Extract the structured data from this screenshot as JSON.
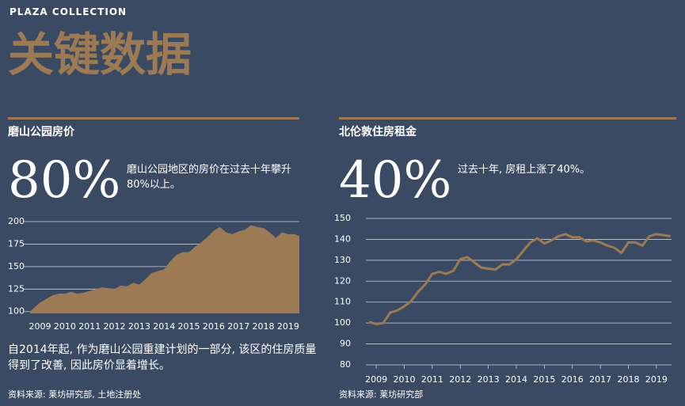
{
  "brand": "PLAZA COLLECTION",
  "title": "关键数据",
  "chart_data": [
    {
      "type": "area",
      "title": "磨山公园房价",
      "big_number": "80%",
      "description": "磨山公园地区的房价在过去十年攀升80%以上。",
      "footnote": "自2014年起, 作为磨山公园重建计划的一部分, 该区的住房质量得到了改善, 因此房价显着增长。",
      "source": "资料来源: 莱坊研究部, 土地注册处",
      "color": "#9c7a54",
      "x": [
        2008.6,
        2008.75,
        2009,
        2009.25,
        2009.5,
        2009.75,
        2010,
        2010.25,
        2010.5,
        2010.75,
        2011,
        2011.25,
        2011.5,
        2011.75,
        2012,
        2012.25,
        2012.5,
        2012.75,
        2013,
        2013.25,
        2013.5,
        2013.75,
        2014,
        2014.25,
        2014.5,
        2014.75,
        2015,
        2015.25,
        2015.5,
        2015.75,
        2016,
        2016.25,
        2016.5,
        2016.75,
        2017,
        2017.25,
        2017.5,
        2017.75,
        2018,
        2018.25,
        2018.5,
        2018.75,
        2019,
        2019.25,
        2019.45
      ],
      "values": [
        100,
        104,
        110,
        114,
        118,
        120,
        120,
        122,
        120,
        121,
        123,
        125,
        127,
        126,
        125,
        129,
        128,
        132,
        130,
        136,
        143,
        145,
        147,
        156,
        163,
        166,
        166,
        172,
        177,
        183,
        190,
        194,
        188,
        186,
        189,
        191,
        196,
        194,
        193,
        188,
        182,
        188,
        186,
        186,
        184
      ],
      "xlim": [
        2008.6,
        2019.45
      ],
      "xticks": [
        2009,
        2010,
        2011,
        2012,
        2013,
        2014,
        2015,
        2016,
        2017,
        2018,
        2019
      ],
      "ylim": [
        98,
        200
      ],
      "yticks": [
        100,
        125,
        150,
        175,
        200
      ],
      "grid": true
    },
    {
      "type": "line",
      "title": "北伦敦住房租金",
      "big_number": "40%",
      "description": "过去十年, 房租上涨了40%。",
      "source": "资料来源: 莱坊研究部",
      "color": "#9c7a54",
      "x": [
        2008.75,
        2009,
        2009.25,
        2009.5,
        2009.75,
        2010,
        2010.25,
        2010.5,
        2010.75,
        2011,
        2011.25,
        2011.5,
        2011.75,
        2012,
        2012.25,
        2012.5,
        2012.75,
        2013,
        2013.25,
        2013.5,
        2013.75,
        2014,
        2014.25,
        2014.5,
        2014.75,
        2015,
        2015.25,
        2015.5,
        2015.75,
        2016,
        2016.25,
        2016.5,
        2016.75,
        2017,
        2017.25,
        2017.5,
        2017.75,
        2018,
        2018.25,
        2018.5,
        2018.75,
        2019,
        2019.25,
        2019.5
      ],
      "values": [
        100.5,
        99.5,
        100,
        105,
        106,
        108,
        110.5,
        115,
        118.5,
        123.5,
        124.5,
        123.5,
        125,
        130.5,
        131.5,
        129,
        126.5,
        126,
        125.5,
        128,
        128,
        130.5,
        134.5,
        138.5,
        140.5,
        138,
        139.5,
        141.5,
        142.5,
        141,
        141,
        139,
        139.5,
        138.5,
        137,
        136,
        133.5,
        138.5,
        138.5,
        137,
        141.5,
        142.5,
        142,
        141.5
      ],
      "xlim": [
        2008.63,
        2019.54
      ],
      "xticks": [
        2009,
        2010,
        2011,
        2012,
        2013,
        2014,
        2015,
        2016,
        2017,
        2018,
        2019
      ],
      "ylim": [
        80,
        150
      ],
      "yticks": [
        80,
        90,
        100,
        110,
        120,
        130,
        140,
        150
      ],
      "grid": true
    }
  ]
}
